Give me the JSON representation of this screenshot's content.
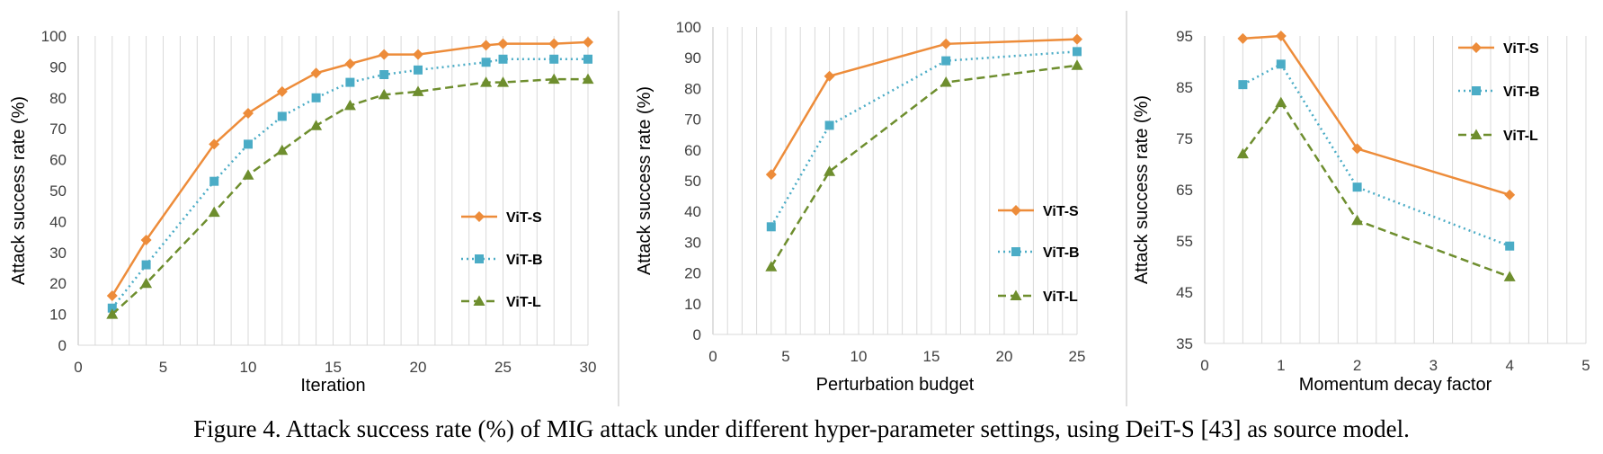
{
  "colors": {
    "vit_s": "#ED8C3A",
    "vit_b": "#4BACC6",
    "vit_l": "#6E8E2E",
    "gridline": "#D9D9D9",
    "axis": "#BFBFBF",
    "divider": "#BFBFBF"
  },
  "caption": "Figure 4. Attack success rate (%) of MIG attack under different hyper-parameter settings, using DeiT-S [43] as source model.",
  "chart_data": [
    {
      "type": "line",
      "xlabel": "Iteration",
      "ylabel": "Attack success rate (%)",
      "xlim": [
        0,
        30
      ],
      "ylim": [
        0,
        100
      ],
      "xticks": [
        "0",
        "5",
        "10",
        "15",
        "20",
        "25",
        "30"
      ],
      "yticks": [
        "0",
        "10",
        "20",
        "30",
        "40",
        "50",
        "60",
        "70",
        "80",
        "90",
        "100"
      ],
      "grid": "vertical",
      "legend": "right",
      "series": [
        {
          "name": "ViT-S",
          "marker": "diamond",
          "style": "solid",
          "x": [
            2,
            4,
            8,
            10,
            12,
            14,
            16,
            18,
            20,
            24,
            25,
            28,
            30
          ],
          "y": [
            16,
            34,
            65,
            75,
            82,
            88,
            91,
            94,
            94,
            97,
            97.5,
            97.5,
            98
          ]
        },
        {
          "name": "ViT-B",
          "marker": "square",
          "style": "dotted",
          "x": [
            2,
            4,
            8,
            10,
            12,
            14,
            16,
            18,
            20,
            24,
            25,
            28,
            30
          ],
          "y": [
            12,
            26,
            53,
            65,
            74,
            80,
            85,
            87.5,
            89,
            91.5,
            92.5,
            92.5,
            92.5
          ]
        },
        {
          "name": "ViT-L",
          "marker": "triangle",
          "style": "dashed",
          "x": [
            2,
            4,
            8,
            10,
            12,
            14,
            16,
            18,
            20,
            24,
            25,
            28,
            30
          ],
          "y": [
            10,
            20,
            43,
            55,
            63,
            71,
            77.5,
            81,
            82,
            85,
            85,
            86,
            86
          ]
        }
      ]
    },
    {
      "type": "line",
      "xlabel": "Perturbation budget",
      "ylabel": "Attack success rate (%)",
      "xlim": [
        0,
        25
      ],
      "ylim": [
        0,
        100
      ],
      "xticks": [
        "0",
        "5",
        "10",
        "15",
        "20",
        "25"
      ],
      "yticks": [
        "0",
        "10",
        "20",
        "30",
        "40",
        "50",
        "60",
        "70",
        "80",
        "90",
        "100"
      ],
      "grid": "vertical",
      "legend": "right",
      "series": [
        {
          "name": "ViT-S",
          "marker": "diamond",
          "style": "solid",
          "x": [
            4,
            8,
            16,
            25
          ],
          "y": [
            52,
            84,
            94.5,
            96
          ]
        },
        {
          "name": "ViT-B",
          "marker": "square",
          "style": "dotted",
          "x": [
            4,
            8,
            16,
            25
          ],
          "y": [
            35,
            68,
            89,
            92
          ]
        },
        {
          "name": "ViT-L",
          "marker": "triangle",
          "style": "dashed",
          "x": [
            4,
            8,
            16,
            25
          ],
          "y": [
            22,
            53,
            82,
            87.5
          ]
        }
      ]
    },
    {
      "type": "line",
      "xlabel": "Momentum decay factor",
      "ylabel": "Attack success rate (%)",
      "xlim": [
        0,
        5
      ],
      "ylim": [
        35,
        95
      ],
      "xticks": [
        "0",
        "1",
        "2",
        "3",
        "4",
        "5"
      ],
      "yticks": [
        "35",
        "45",
        "55",
        "65",
        "75",
        "85",
        "95"
      ],
      "grid": "vertical",
      "legend": "top-right",
      "series": [
        {
          "name": "ViT-S",
          "marker": "diamond",
          "style": "solid",
          "x": [
            0.5,
            1,
            2,
            4
          ],
          "y": [
            94.5,
            95,
            73,
            64
          ]
        },
        {
          "name": "ViT-B",
          "marker": "square",
          "style": "dotted",
          "x": [
            0.5,
            1,
            2,
            4
          ],
          "y": [
            85.5,
            89.5,
            65.5,
            54
          ]
        },
        {
          "name": "ViT-L",
          "marker": "triangle",
          "style": "dashed",
          "x": [
            0.5,
            1,
            2,
            4
          ],
          "y": [
            72,
            82,
            59,
            48
          ]
        }
      ]
    }
  ]
}
